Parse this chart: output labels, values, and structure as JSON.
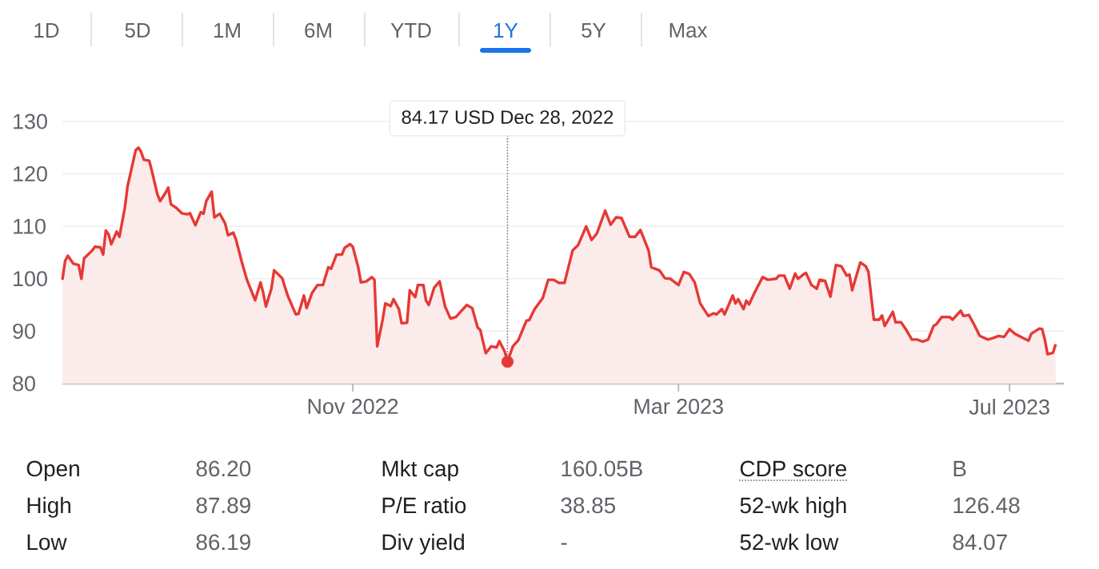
{
  "chart_data": {
    "type": "area",
    "grid": "y",
    "xlim": [
      "2022-07-17",
      "2023-07-21"
    ],
    "ylim": [
      80,
      130
    ],
    "xticks": [
      {
        "value": "2022-11-01",
        "label": "Nov 2022"
      },
      {
        "value": "2023-03-01",
        "label": "Mar 2023"
      },
      {
        "value": "2023-07-01",
        "label": "Jul 2023"
      }
    ],
    "yticks": [
      80,
      90,
      100,
      110,
      120,
      130
    ],
    "series": [
      {
        "color": "#e53935",
        "x": [
          "2022-07-17",
          "2022-07-18",
          "2022-07-19",
          "2022-07-21",
          "2022-07-23",
          "2022-07-24",
          "2022-07-25",
          "2022-07-28",
          "2022-07-29",
          "2022-07-31",
          "2022-08-01",
          "2022-08-02",
          "2022-08-03",
          "2022-08-04",
          "2022-08-06",
          "2022-08-07",
          "2022-08-09",
          "2022-08-10",
          "2022-08-12",
          "2022-08-13",
          "2022-08-14",
          "2022-08-15",
          "2022-08-16",
          "2022-08-18",
          "2022-08-19",
          "2022-08-21",
          "2022-08-22",
          "2022-08-24",
          "2022-08-25",
          "2022-08-26",
          "2022-08-28",
          "2022-08-30",
          "2022-09-01",
          "2022-09-02",
          "2022-09-04",
          "2022-09-06",
          "2022-09-07",
          "2022-09-08",
          "2022-09-10",
          "2022-09-11",
          "2022-09-13",
          "2022-09-15",
          "2022-09-16",
          "2022-09-18",
          "2022-09-19",
          "2022-09-21",
          "2022-09-23",
          "2022-09-24",
          "2022-09-26",
          "2022-09-28",
          "2022-09-29",
          "2022-09-30",
          "2022-10-02",
          "2022-10-03",
          "2022-10-06",
          "2022-10-08",
          "2022-10-11",
          "2022-10-12",
          "2022-10-14",
          "2022-10-15",
          "2022-10-17",
          "2022-10-19",
          "2022-10-21",
          "2022-10-23",
          "2022-10-24",
          "2022-10-26",
          "2022-10-28",
          "2022-10-29",
          "2022-10-31",
          "2022-11-01",
          "2022-11-03",
          "2022-11-04",
          "2022-11-06",
          "2022-11-08",
          "2022-11-09",
          "2022-11-10",
          "2022-11-12",
          "2022-11-13",
          "2022-11-15",
          "2022-11-16",
          "2022-11-18",
          "2022-11-19",
          "2022-11-21",
          "2022-11-22",
          "2022-11-24",
          "2022-11-25",
          "2022-11-27",
          "2022-11-28",
          "2022-11-29",
          "2022-12-01",
          "2022-12-03",
          "2022-12-05",
          "2022-12-07",
          "2022-12-09",
          "2022-12-13",
          "2022-12-15",
          "2022-12-17",
          "2022-12-18",
          "2022-12-20",
          "2022-12-22",
          "2022-12-24",
          "2022-12-25",
          "2022-12-27",
          "2022-12-28",
          "2022-12-30",
          "2023-01-01",
          "2023-01-04",
          "2023-01-05",
          "2023-01-07",
          "2023-01-10",
          "2023-01-12",
          "2023-01-14",
          "2023-01-16",
          "2023-01-18",
          "2023-01-21",
          "2023-01-23",
          "2023-01-26",
          "2023-01-28",
          "2023-01-30",
          "2023-02-02",
          "2023-02-04",
          "2023-02-06",
          "2023-02-08",
          "2023-02-11",
          "2023-02-13",
          "2023-02-15",
          "2023-02-18",
          "2023-02-19",
          "2023-02-22",
          "2023-02-24",
          "2023-02-26",
          "2023-03-01",
          "2023-03-03",
          "2023-03-05",
          "2023-03-07",
          "2023-03-09",
          "2023-03-12",
          "2023-03-14",
          "2023-03-15",
          "2023-03-17",
          "2023-03-18",
          "2023-03-21",
          "2023-03-22",
          "2023-03-23",
          "2023-03-25",
          "2023-03-26",
          "2023-03-27",
          "2023-03-29",
          "2023-04-01",
          "2023-04-03",
          "2023-04-06",
          "2023-04-07",
          "2023-04-09",
          "2023-04-11",
          "2023-04-13",
          "2023-04-14",
          "2023-04-16",
          "2023-04-17",
          "2023-04-19",
          "2023-04-21",
          "2023-04-22",
          "2023-04-24",
          "2023-04-26",
          "2023-04-28",
          "2023-04-30",
          "2023-05-02",
          "2023-05-03",
          "2023-05-04",
          "2023-05-07",
          "2023-05-09",
          "2023-05-10",
          "2023-05-12",
          "2023-05-14",
          "2023-05-15",
          "2023-05-16",
          "2023-05-19",
          "2023-05-20",
          "2023-05-22",
          "2023-05-24",
          "2023-05-26",
          "2023-05-28",
          "2023-05-30",
          "2023-06-01",
          "2023-06-03",
          "2023-06-04",
          "2023-06-06",
          "2023-06-09",
          "2023-06-10",
          "2023-06-13",
          "2023-06-14",
          "2023-06-16",
          "2023-06-18",
          "2023-06-20",
          "2023-06-23",
          "2023-06-25",
          "2023-06-27",
          "2023-06-29",
          "2023-07-01",
          "2023-07-03",
          "2023-07-06",
          "2023-07-08",
          "2023-07-09",
          "2023-07-12",
          "2023-07-13",
          "2023-07-14",
          "2023-07-15",
          "2023-07-17",
          "2023-07-18"
        ],
        "values": [
          99.8,
          103.4,
          104.4,
          102.9,
          102.6,
          100.0,
          103.9,
          105.4,
          106.1,
          106.0,
          104.6,
          109.2,
          108.5,
          106.6,
          109.0,
          108.0,
          113.5,
          117.6,
          122.2,
          124.5,
          125.0,
          124.2,
          122.7,
          122.5,
          120.5,
          116.1,
          114.8,
          116.4,
          117.4,
          114.2,
          113.5,
          112.5,
          112.3,
          112.5,
          110.2,
          112.7,
          112.4,
          114.8,
          116.6,
          111.7,
          112.4,
          110.5,
          108.3,
          108.8,
          107.4,
          103.4,
          99.8,
          98.5,
          95.9,
          99.3,
          97.3,
          94.7,
          98.1,
          101.6,
          100.1,
          96.8,
          93.2,
          93.3,
          96.8,
          94.4,
          97.3,
          98.8,
          98.8,
          102.2,
          101.9,
          104.6,
          104.6,
          105.9,
          106.6,
          106.1,
          102.2,
          99.3,
          99.5,
          100.3,
          99.8,
          87.1,
          92.2,
          95.3,
          94.8,
          96.1,
          94.2,
          91.5,
          91.6,
          97.8,
          96.5,
          98.8,
          98.8,
          95.8,
          95.0,
          98.3,
          99.5,
          94.7,
          92.4,
          92.7,
          95.0,
          94.4,
          90.7,
          90.2,
          85.8,
          87.1,
          86.9,
          88.1,
          86.1,
          84.2,
          87.1,
          88.3,
          92.0,
          92.1,
          94.2,
          96.3,
          99.8,
          99.8,
          99.2,
          99.2,
          105.4,
          106.4,
          110.0,
          107.4,
          108.7,
          113.0,
          110.3,
          111.7,
          111.6,
          108.0,
          108.0,
          109.3,
          105.4,
          102.2,
          101.6,
          100.1,
          100.0,
          98.8,
          101.3,
          100.9,
          99.3,
          95.3,
          92.9,
          93.4,
          93.2,
          94.2,
          93.2,
          96.8,
          95.3,
          96.1,
          94.2,
          95.8,
          95.1,
          97.3,
          100.3,
          99.8,
          100.0,
          100.6,
          100.6,
          98.1,
          101.0,
          100.0,
          100.8,
          101.1,
          98.8,
          98.1,
          99.8,
          99.6,
          96.6,
          102.6,
          102.4,
          100.6,
          100.8,
          97.8,
          103.1,
          102.4,
          101.3,
          92.2,
          92.2,
          93.0,
          91.0,
          93.7,
          91.7,
          91.7,
          90.2,
          88.4,
          88.4,
          88.0,
          88.4,
          91.0,
          91.3,
          92.7,
          92.7,
          92.2,
          93.9,
          92.9,
          93.1,
          91.2,
          89.1,
          88.4,
          88.7,
          89.1,
          88.9,
          90.4,
          89.5,
          88.7,
          88.2,
          89.5,
          90.5,
          90.4,
          88.4,
          85.6,
          85.9,
          87.5
        ]
      },
      {
        "type": "scatter",
        "color": "#e53935",
        "x": [
          "2022-12-28"
        ],
        "values": [
          84.17
        ]
      }
    ],
    "ref_lines": [
      {
        "axis": "x",
        "value": "2022-12-28",
        "line_style": "dotted",
        "color": "#757575"
      }
    ],
    "annotations": [
      "1D",
      "5D",
      "1M",
      "6M",
      "YTD",
      "1Y",
      "5Y",
      "Max",
      "Open",
      "86.20",
      "Mkt cap",
      "160.05B",
      "CDP score",
      "B",
      "High",
      "87.89",
      "P/E ratio",
      "38.85",
      "52-wk high",
      "126.48",
      "Low",
      "86.19",
      "Div yield",
      "-",
      "52-wk low",
      "84.07",
      "84.17 USD Dec 28, 2022"
    ]
  }
}
